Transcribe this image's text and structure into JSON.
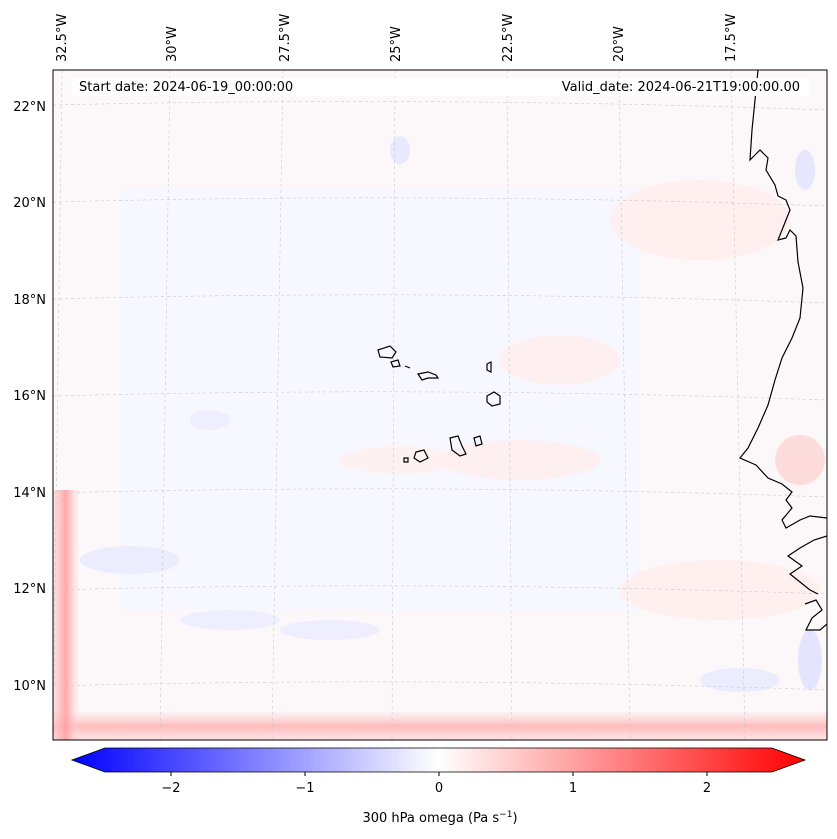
{
  "header": {
    "start_date": "Start date: 2024-06-19_00:00:00",
    "valid_date": "Valid_date: 2024-06-21T19:00:00.00"
  },
  "map": {
    "lon_labels": [
      "32.5°W",
      "30°W",
      "27.5°W",
      "25°W",
      "22.5°W",
      "20°W",
      "17.5°W"
    ],
    "lat_labels": [
      "22°N",
      "20°N",
      "18°N",
      "16°N",
      "14°N",
      "12°N",
      "10°N"
    ],
    "gridlines": "dashed"
  },
  "colorbar": {
    "label_main": "300 hPa omega (Pa s",
    "label_exp": "−1",
    "label_close": ")",
    "ticks": [
      "−2",
      "−1",
      "0",
      "1",
      "2"
    ],
    "range": [
      -2.6,
      2.6
    ],
    "colors": {
      "negative": "#0000ff",
      "zero": "#ffffff",
      "positive": "#ff0000"
    }
  }
}
